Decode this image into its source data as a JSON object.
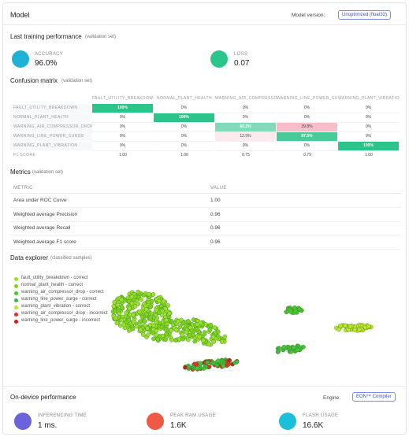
{
  "header": {
    "title": "Model",
    "model_version_label": "Model version:",
    "model_version": "Unoptimized (float32)"
  },
  "training": {
    "title": "Last training performance",
    "note": "(validation set)",
    "accuracy_label": "ACCURACY",
    "accuracy": "96.0%",
    "loss_label": "LOSS",
    "loss": "0.07"
  },
  "confusion": {
    "title": "Confusion matrix",
    "note": "(validation set)",
    "columns": [
      "FAULT_UTILITY_BREAKDOWN",
      "NORMAL_PLANT_HEALTH",
      "WARNING_AIR_COMPRESSOR_DROP",
      "WARNING_LINE_POWER_SURGE",
      "WARNING_PLANT_VIBRATION"
    ],
    "rows": [
      {
        "label": "FAULT_UTILITY_BREAKDOWN",
        "cells": [
          "100%",
          "0%",
          "0%",
          "0%",
          "0%"
        ]
      },
      {
        "label": "NORMAL_PLANT_HEALTH",
        "cells": [
          "0%",
          "100%",
          "0%",
          "0%",
          "0%"
        ]
      },
      {
        "label": "WARNING_AIR_COMPRESSOR_DROP",
        "cells": [
          "0%",
          "0%",
          "60.2%",
          "39.8%",
          "0%"
        ]
      },
      {
        "label": "WARNING_LINE_POWER_SURGE",
        "cells": [
          "0%",
          "0%",
          "12.5%",
          "87.5%",
          "0%"
        ]
      },
      {
        "label": "WARNING_PLANT_VIBRATION",
        "cells": [
          "0%",
          "0%",
          "0%",
          "0%",
          "100%"
        ]
      }
    ],
    "f1_label": "F1 SCORE",
    "f1": [
      "1.00",
      "1.00",
      "0.75",
      "0.79",
      "1.00"
    ]
  },
  "metrics": {
    "title": "Metrics",
    "note": "(validation set)",
    "header": [
      "METRIC",
      "VALUE"
    ],
    "rows": [
      [
        "Area under ROC Curve",
        "1.00"
      ],
      [
        "Weighted average Precision",
        "0.96"
      ],
      [
        "Weighted average Recall",
        "0.96"
      ],
      [
        "Weighted average F1 score",
        "0.96"
      ]
    ]
  },
  "explorer": {
    "title": "Data explorer",
    "note": "(classified samples)",
    "legend": [
      {
        "name": "fault_utility_breakdown - correct",
        "color": "#9be02e"
      },
      {
        "name": "normal_plant_health - correct",
        "color": "#7ed321"
      },
      {
        "name": "warning_air_compressor_drop - correct",
        "color": "#4cc43a"
      },
      {
        "name": "warning_line_power_surge - correct",
        "color": "#3cb843"
      },
      {
        "name": "warning_plant_vibration - correct",
        "color": "#c4e42a"
      },
      {
        "name": "warning_air_compressor_drop - incorrect",
        "color": "#e03030"
      },
      {
        "name": "warning_line_power_surge - incorrect",
        "color": "#c81e1e"
      }
    ]
  },
  "device": {
    "title": "On-device performance",
    "engine_label": "Engine:",
    "engine": "EON™ Compiler",
    "items": [
      {
        "label": "INFERENCING TIME",
        "value": "1 ms.",
        "color": "#6b63d9"
      },
      {
        "label": "PEAK RAM USAGE",
        "value": "1.6K",
        "color": "#ee5a45"
      },
      {
        "label": "FLASH USAGE",
        "value": "16.6K",
        "color": "#1bbfd9"
      }
    ]
  }
}
